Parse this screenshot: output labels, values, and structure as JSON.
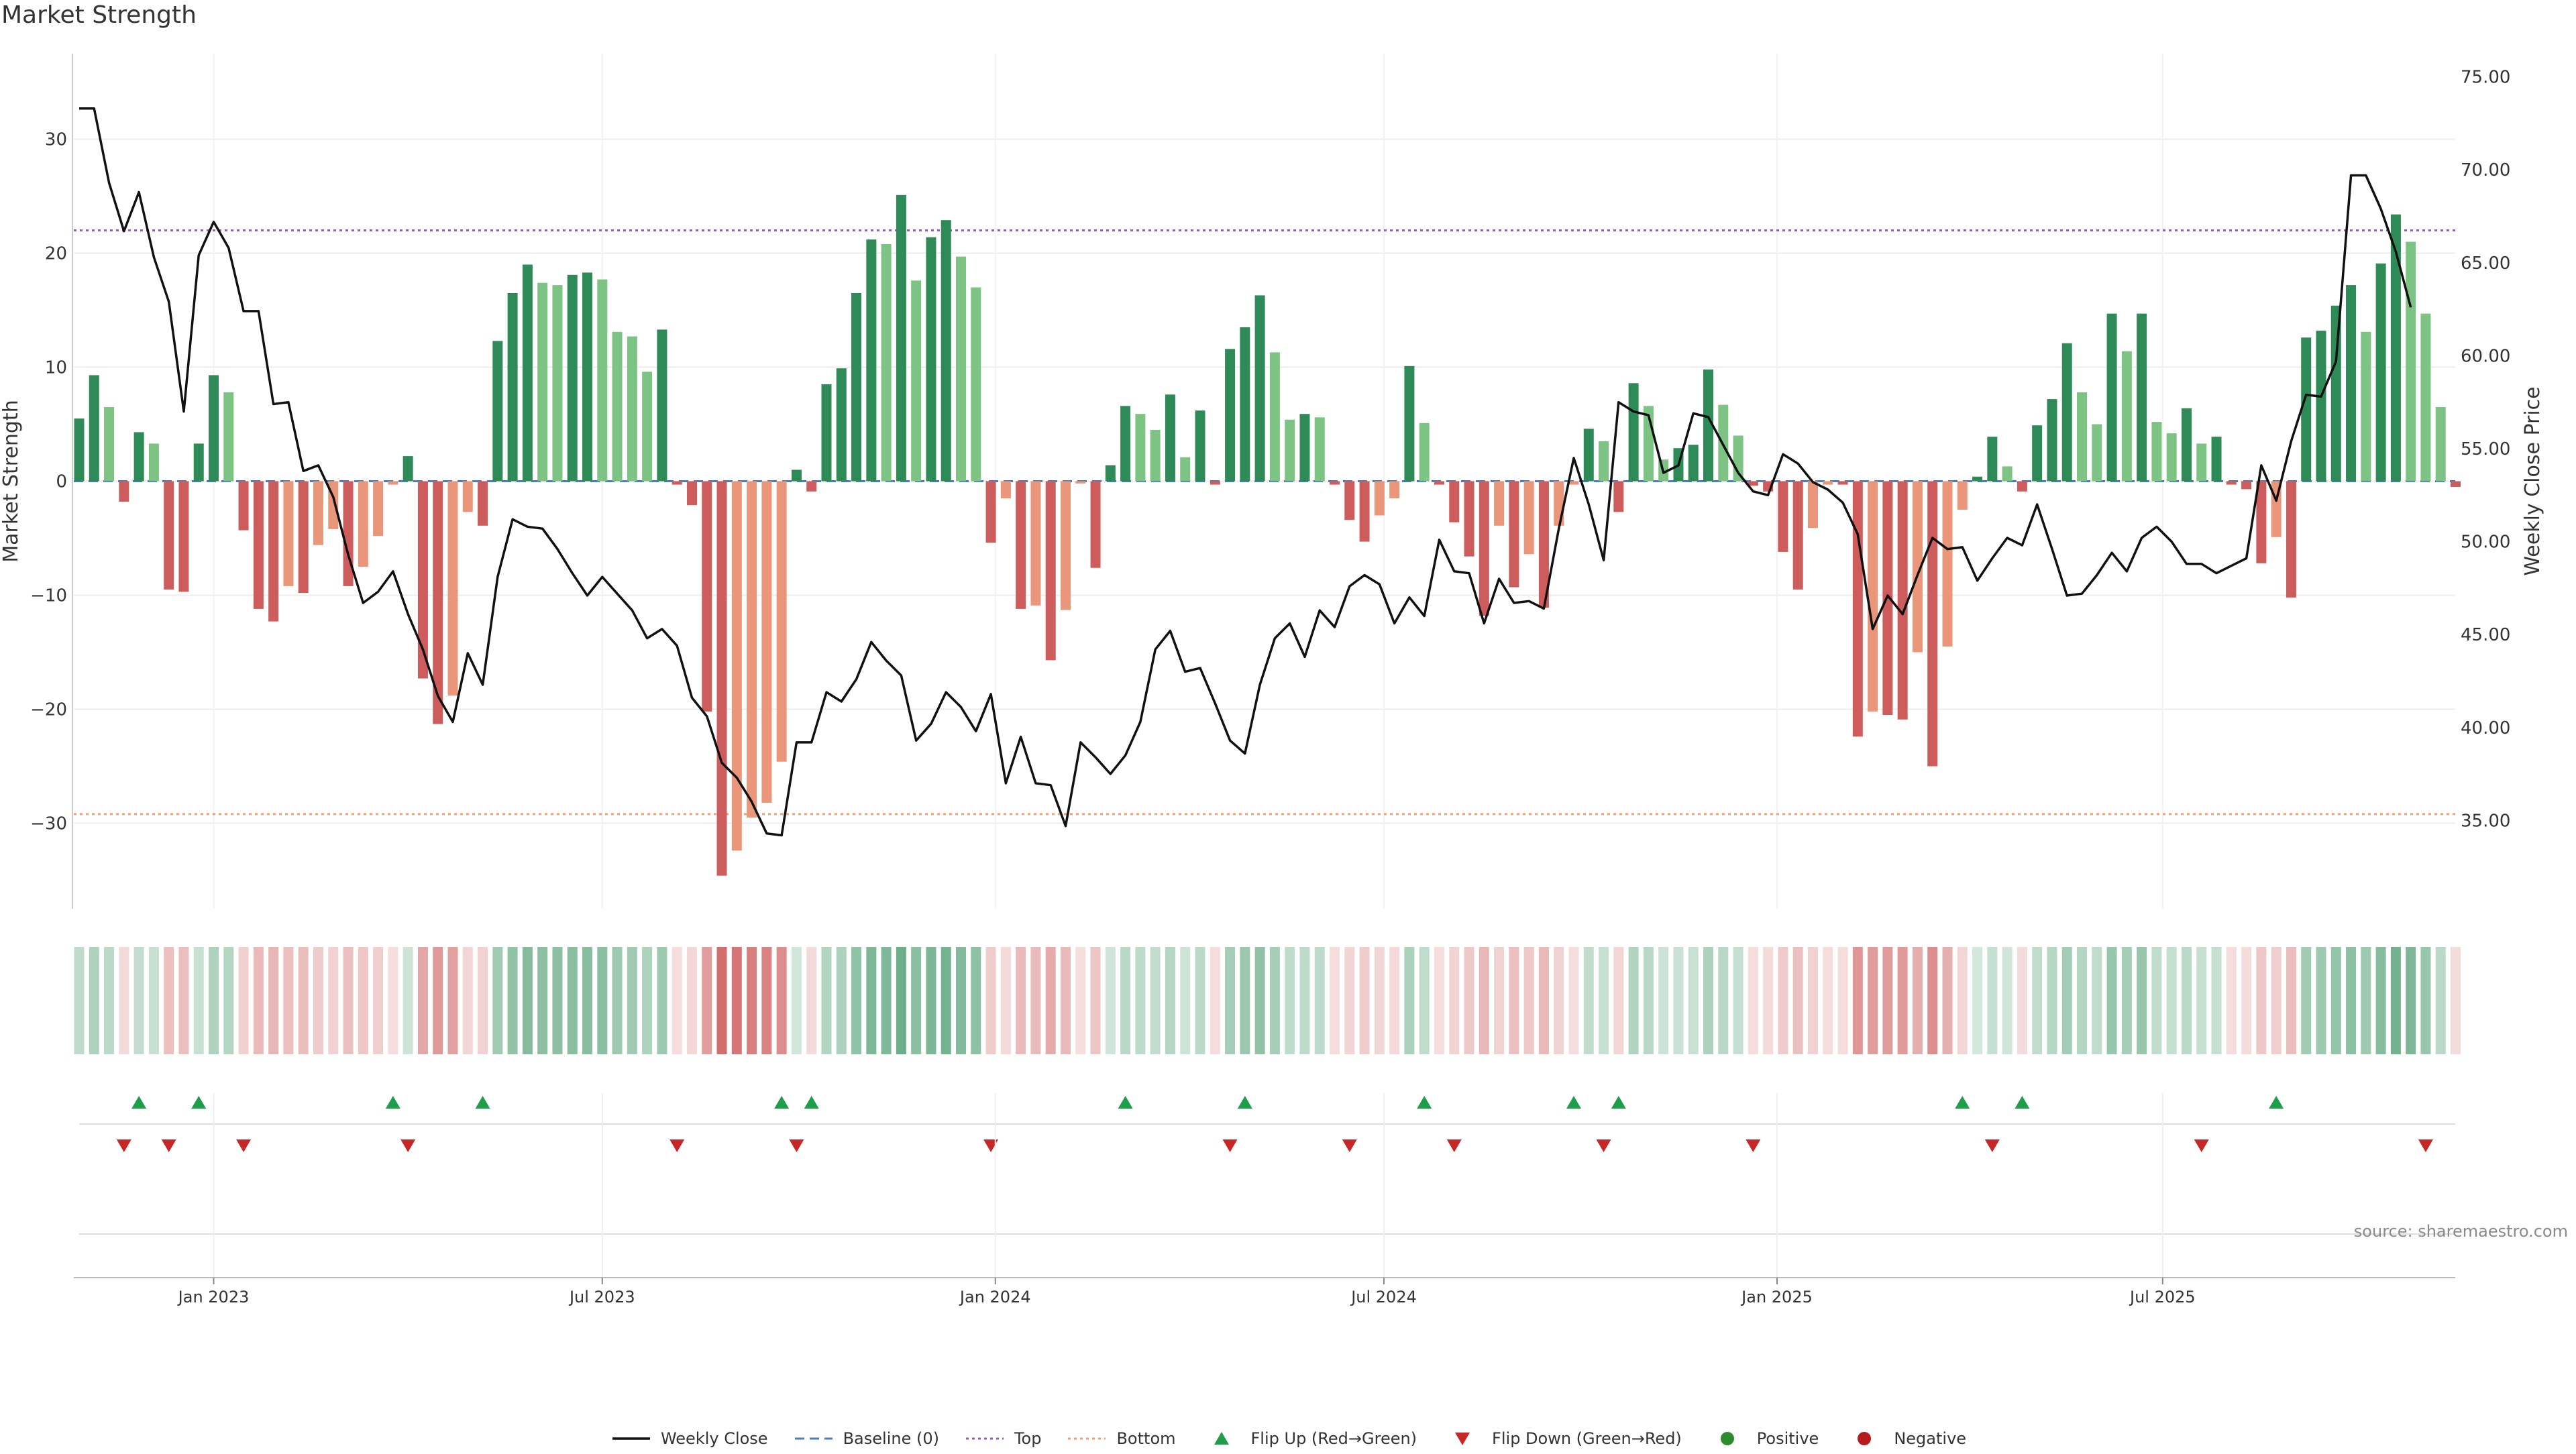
{
  "title": "Market Strength",
  "source": "source: sharemaestro.com",
  "colors": {
    "pos_strong": "#2e8b57",
    "pos_weak": "#7dc383",
    "neg_strong": "#cd5c5c",
    "neg_weak": "#e9967a",
    "price_line": "#111111",
    "baseline": "#4a7fb0",
    "top": "#9b59b6",
    "bottom": "#f0a070",
    "flip_up": "#1e9e4a",
    "flip_down": "#c62828",
    "positive": "#2e8b2e",
    "negative": "#b71c1c"
  },
  "legend": [
    {
      "key": "weekly_close",
      "label": "Weekly Close",
      "symbol": "line"
    },
    {
      "key": "baseline",
      "label": "Baseline (0)",
      "symbol": "dash"
    },
    {
      "key": "top",
      "label": "Top",
      "symbol": "dotted"
    },
    {
      "key": "bottom",
      "label": "Bottom",
      "symbol": "dotted"
    },
    {
      "key": "flip_up",
      "label": "Flip Up (Red→Green)",
      "symbol": "triangle-up"
    },
    {
      "key": "flip_down",
      "label": "Flip Down (Green→Red)",
      "symbol": "triangle-down"
    },
    {
      "key": "positive",
      "label": "Positive",
      "symbol": "dot"
    },
    {
      "key": "negative",
      "label": "Negative",
      "symbol": "dot"
    }
  ],
  "chart_data": {
    "type": "bar",
    "title": "Market Strength",
    "ylabel": "Market Strength",
    "ylabel_right": "Weekly Close Price",
    "ylim": [
      -37.5,
      37.5
    ],
    "y_ticks": [
      -30,
      -20,
      -10,
      0,
      10,
      20,
      30
    ],
    "ylim_right": [
      30.25,
      76.25
    ],
    "y_ticks_right": [
      "35.00",
      "40.00",
      "45.00",
      "50.00",
      "55.00",
      "60.00",
      "65.00",
      "70.00",
      "75.00"
    ],
    "x_ticks": [
      {
        "label": "Jan 2023",
        "week": 9.0
      },
      {
        "label": "Jul 2023",
        "week": 35.0
      },
      {
        "label": "Jan 2024",
        "week": 61.3
      },
      {
        "label": "Jul 2024",
        "week": 87.3
      },
      {
        "label": "Jan 2025",
        "week": 113.6
      },
      {
        "label": "Jul 2025",
        "week": 139.4
      }
    ],
    "top_line": 22,
    "bottom_line": -29.2,
    "grid": true,
    "legend_position": "bottom",
    "strength": [
      5.5,
      9.3,
      6.5,
      -1.8,
      4.3,
      3.3,
      -9.5,
      -9.7,
      3.3,
      9.3,
      7.8,
      -4.3,
      -11.2,
      -12.3,
      -9.2,
      -9.8,
      -5.6,
      -4.2,
      -9.2,
      -7.5,
      -4.8,
      -0.3,
      2.2,
      -17.3,
      -21.3,
      -18.8,
      -2.7,
      -3.9,
      12.3,
      16.5,
      19.0,
      17.4,
      17.2,
      18.1,
      18.3,
      17.7,
      13.1,
      12.7,
      9.6,
      13.3,
      -0.3,
      -2.1,
      -20.2,
      -34.6,
      -32.4,
      -29.5,
      -28.2,
      -24.6,
      1.0,
      -0.9,
      8.5,
      9.9,
      16.5,
      21.2,
      20.8,
      25.1,
      17.6,
      21.4,
      22.9,
      19.7,
      17.0,
      -5.4,
      -1.5,
      -11.2,
      -10.9,
      -15.7,
      -11.3,
      -0.2,
      -7.6,
      1.4,
      6.6,
      5.9,
      4.5,
      7.6,
      2.1,
      6.2,
      -0.3,
      11.6,
      13.5,
      16.3,
      11.3,
      5.4,
      5.9,
      5.6,
      -0.3,
      -3.4,
      -5.3,
      -3.0,
      -1.5,
      10.1,
      5.1,
      -0.3,
      -3.6,
      -6.6,
      -11.8,
      -3.9,
      -9.3,
      -6.4,
      -11.1,
      -3.9,
      -0.3,
      4.6,
      3.5,
      -2.7,
      8.6,
      6.6,
      1.9,
      2.9,
      3.2,
      9.8,
      6.7,
      4.0,
      -0.4,
      -0.9,
      -6.2,
      -9.5,
      -4.1,
      -0.3,
      -0.3,
      -22.4,
      -20.2,
      -20.5,
      -20.9,
      -15.0,
      -25.0,
      -14.5,
      -2.5,
      0.4,
      3.9,
      1.3,
      -0.9,
      4.9,
      7.2,
      12.1,
      7.8,
      5.0,
      14.7,
      11.4,
      14.7,
      5.2,
      4.2,
      6.4,
      3.3,
      3.9,
      -0.3,
      -0.7,
      -7.2,
      -4.9,
      -10.2,
      12.6,
      13.2,
      15.4,
      17.2,
      13.1,
      19.1,
      23.4,
      21.0,
      14.7,
      6.5,
      -0.5
    ],
    "close": [
      73.3,
      73.3,
      69.3,
      66.7,
      68.8,
      65.3,
      62.9,
      57.0,
      65.4,
      67.2,
      65.8,
      62.4,
      62.4,
      57.4,
      57.5,
      53.8,
      54.1,
      52.4,
      49.3,
      46.7,
      47.3,
      48.4,
      46.1,
      44.2,
      41.7,
      40.3,
      44.0,
      42.3,
      48.1,
      51.2,
      50.8,
      50.7,
      49.6,
      48.3,
      47.1,
      48.1,
      47.2,
      46.3,
      44.8,
      45.3,
      44.4,
      41.6,
      40.6,
      38.1,
      37.3,
      36.0,
      34.3,
      34.2,
      39.2,
      39.2,
      41.9,
      41.4,
      42.6,
      44.6,
      43.6,
      42.8,
      39.3,
      40.2,
      41.9,
      41.1,
      39.8,
      41.8,
      37.0,
      39.5,
      37.0,
      36.9,
      34.7,
      39.2,
      38.4,
      37.5,
      38.5,
      40.3,
      44.2,
      45.2,
      43.0,
      43.2,
      41.3,
      39.3,
      38.6,
      42.3,
      44.8,
      45.6,
      43.8,
      46.3,
      45.4,
      47.6,
      48.2,
      47.7,
      45.6,
      47.0,
      46.0,
      50.1,
      48.4,
      48.3,
      45.6,
      48.0,
      46.7,
      46.8,
      46.4,
      50.7,
      54.5,
      52.0,
      49.0,
      57.5,
      57.0,
      56.8,
      53.7,
      54.1,
      56.9,
      56.7,
      55.2,
      53.7,
      52.7,
      52.5,
      54.7,
      54.2,
      53.2,
      52.8,
      52.1,
      50.4,
      45.3,
      47.1,
      46.1,
      48.2,
      50.2,
      49.6,
      49.7,
      47.9,
      49.1,
      50.2,
      49.8,
      52.0,
      49.6,
      47.1,
      47.2,
      48.2,
      49.4,
      48.4,
      50.2,
      50.8,
      50.0,
      48.8,
      48.8,
      48.3,
      48.7,
      49.1,
      54.1,
      52.2,
      55.4,
      57.9,
      57.8,
      59.7,
      69.7,
      69.7,
      67.9,
      65.6,
      62.6
    ],
    "flip_up_weeks": [
      4,
      8,
      21,
      27,
      47,
      49,
      70,
      78,
      90,
      100,
      103,
      126,
      130,
      147
    ],
    "flip_down_weeks": [
      3,
      6,
      11,
      22,
      40,
      48,
      61,
      77,
      85,
      92,
      102,
      112,
      128,
      142,
      157
    ]
  }
}
